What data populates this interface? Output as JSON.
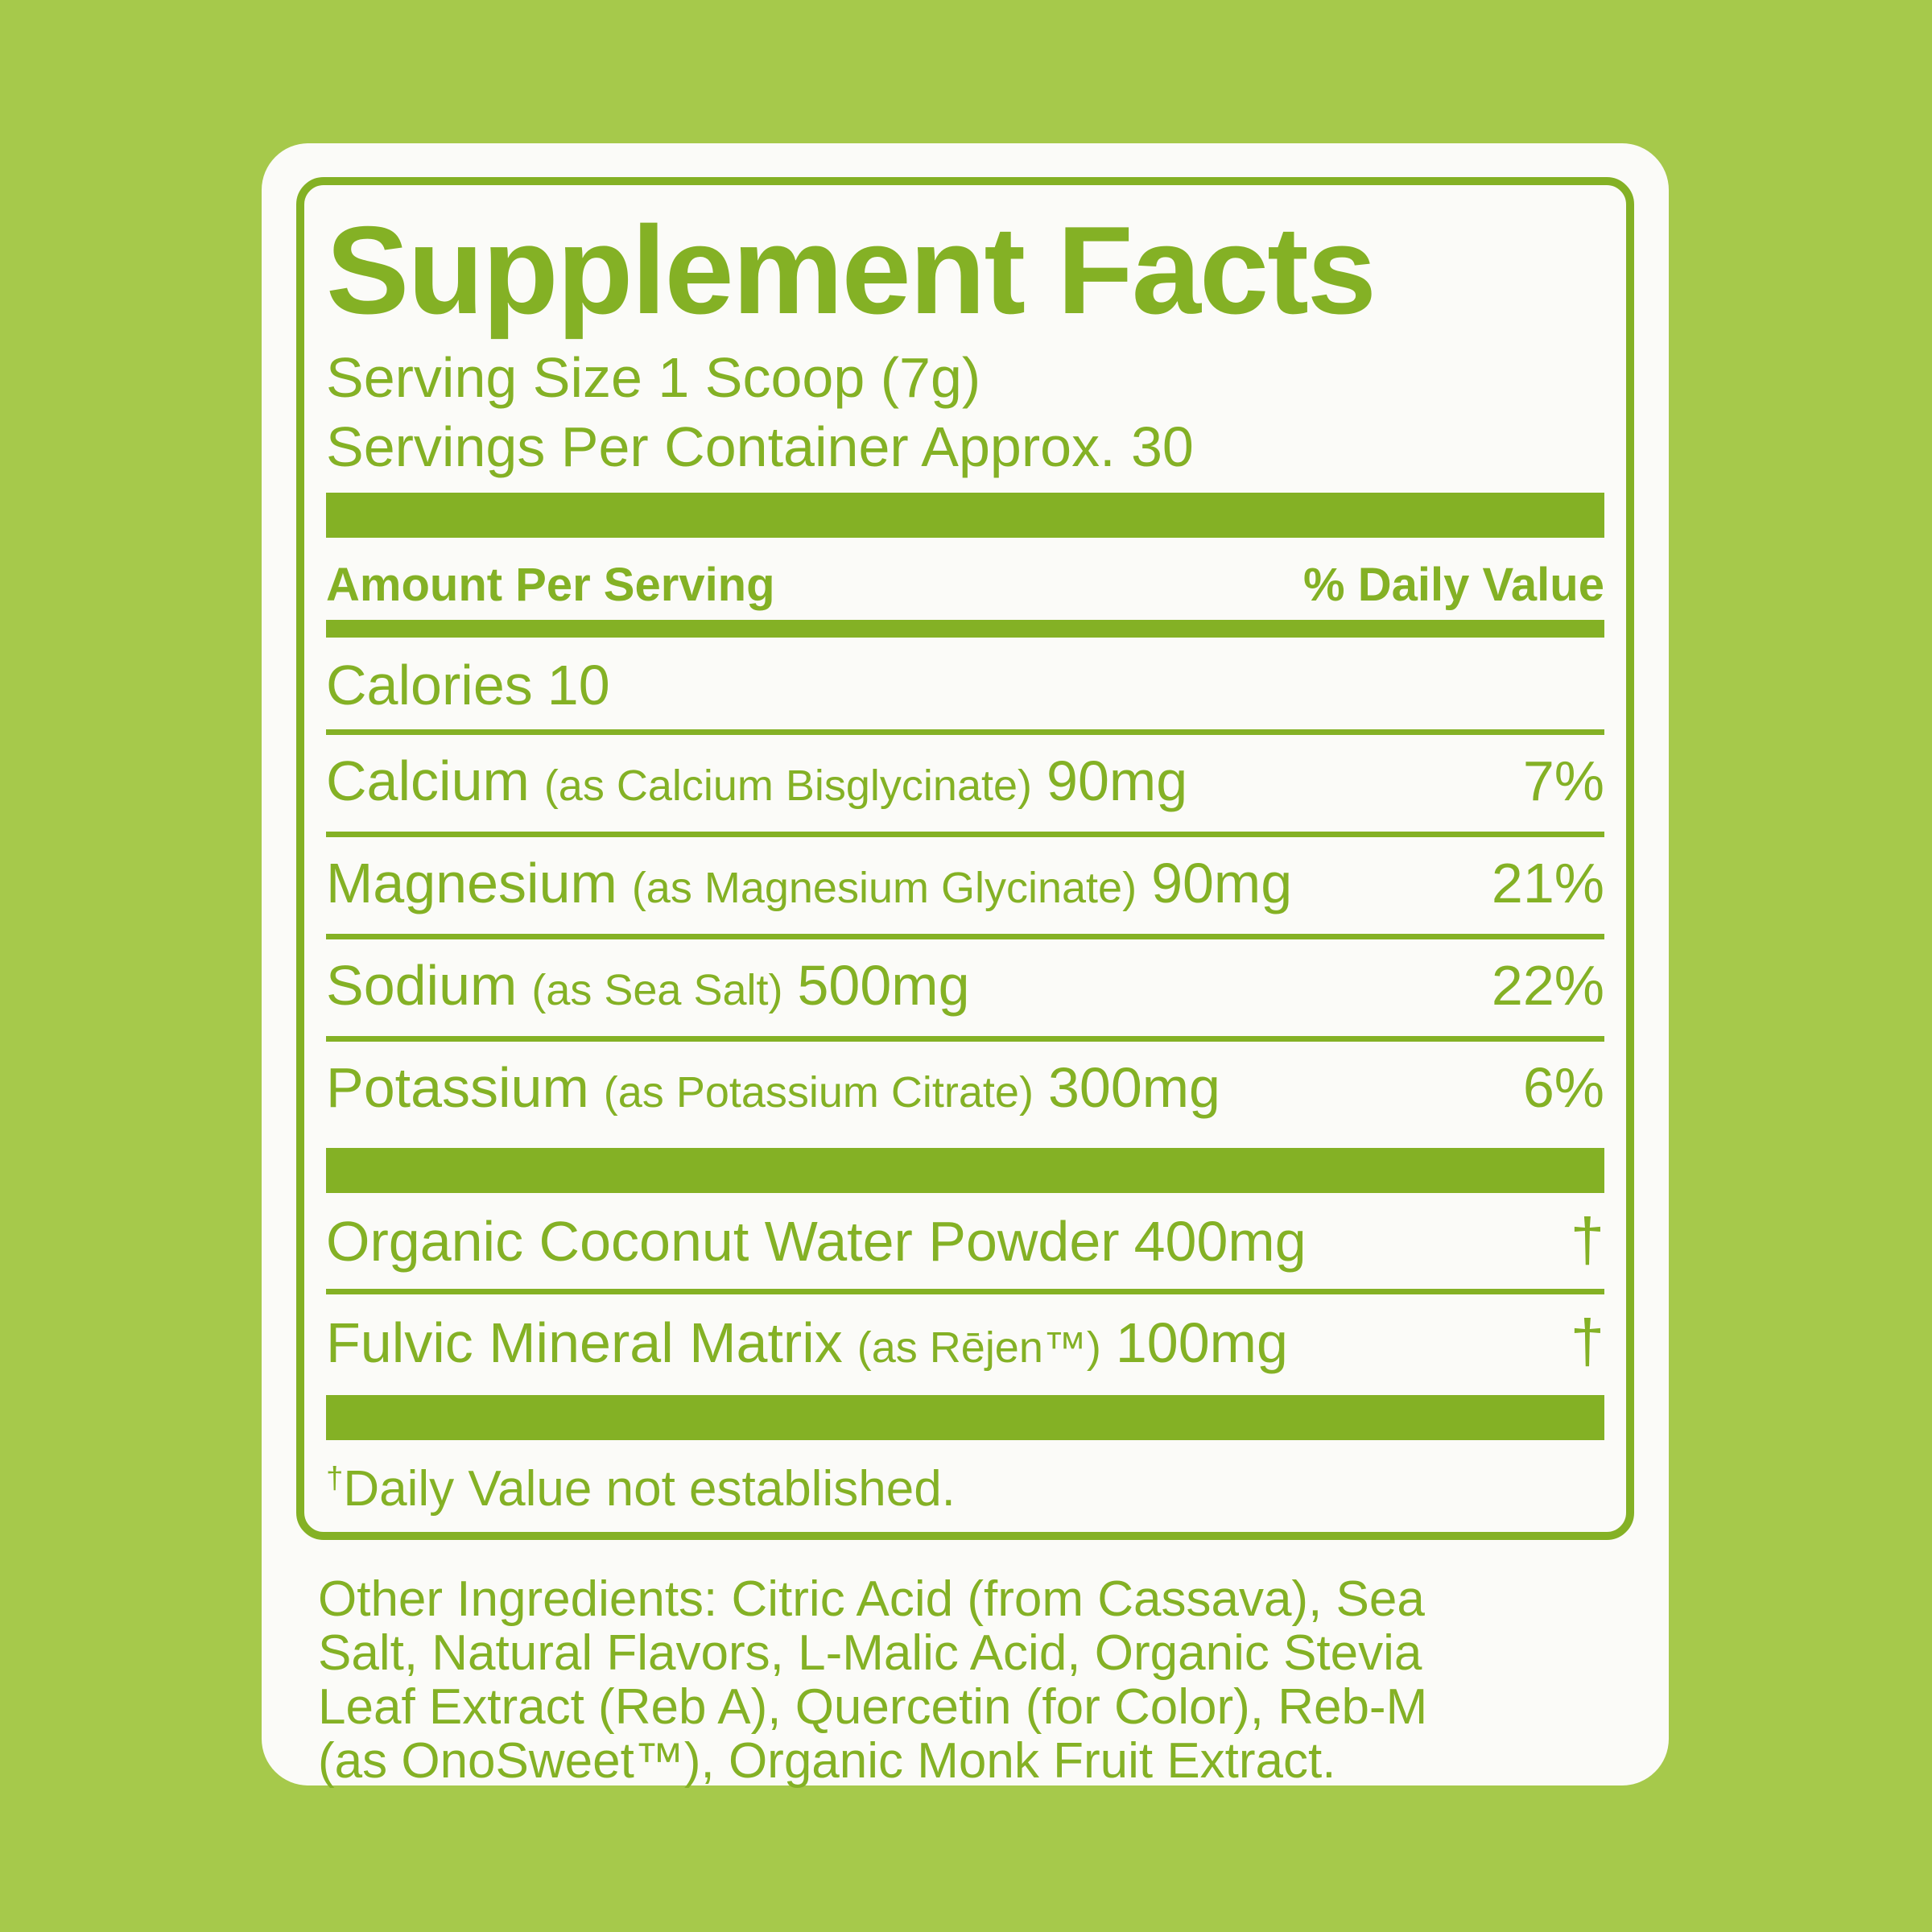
{
  "colors": {
    "background": "#a6c94b",
    "accent_green": "#84b125",
    "card": "#fbfbf8"
  },
  "label": {
    "title": "Supplement Facts",
    "serving_size": "Serving Size 1 Scoop (7g)",
    "servings_per_container": "Servings Per Container Approx. 30",
    "header": {
      "amount": "Amount Per Serving",
      "daily_value": "% Daily Value"
    },
    "calories": {
      "name": "Calories",
      "amount": "10"
    },
    "nutrients": [
      {
        "name": "Calcium",
        "detail": "(as Calcium Bisglycinate)",
        "amount": "90mg",
        "dv": "7%"
      },
      {
        "name": "Magnesium",
        "detail": "(as Magnesium Glycinate)",
        "amount": "90mg",
        "dv": "21%"
      },
      {
        "name": "Sodium",
        "detail": "(as Sea Salt)",
        "amount": "500mg",
        "dv": "22%"
      },
      {
        "name": "Potassium",
        "detail": "(as Potassium Citrate)",
        "amount": "300mg",
        "dv": "6%"
      }
    ],
    "blends": [
      {
        "name": "Organic Coconut Water Powder",
        "detail": "",
        "amount": "400mg",
        "dv": "†"
      },
      {
        "name": "Fulvic Mineral Matrix",
        "detail": "(as Rējen™)",
        "amount": "100mg",
        "dv": "†"
      }
    ],
    "footnote_dagger": "†",
    "footnote_text": "Daily Value not established.",
    "other_ingredients_lines": [
      "Other Ingredients: Citric Acid (from Cassava), Sea",
      "Salt, Natural Flavors, L-Malic Acid, Organic Stevia",
      "Leaf Extract (Reb A), Quercetin (for Color), Reb-M",
      "(as OnoSweet™), Organic Monk Fruit Extract."
    ]
  }
}
